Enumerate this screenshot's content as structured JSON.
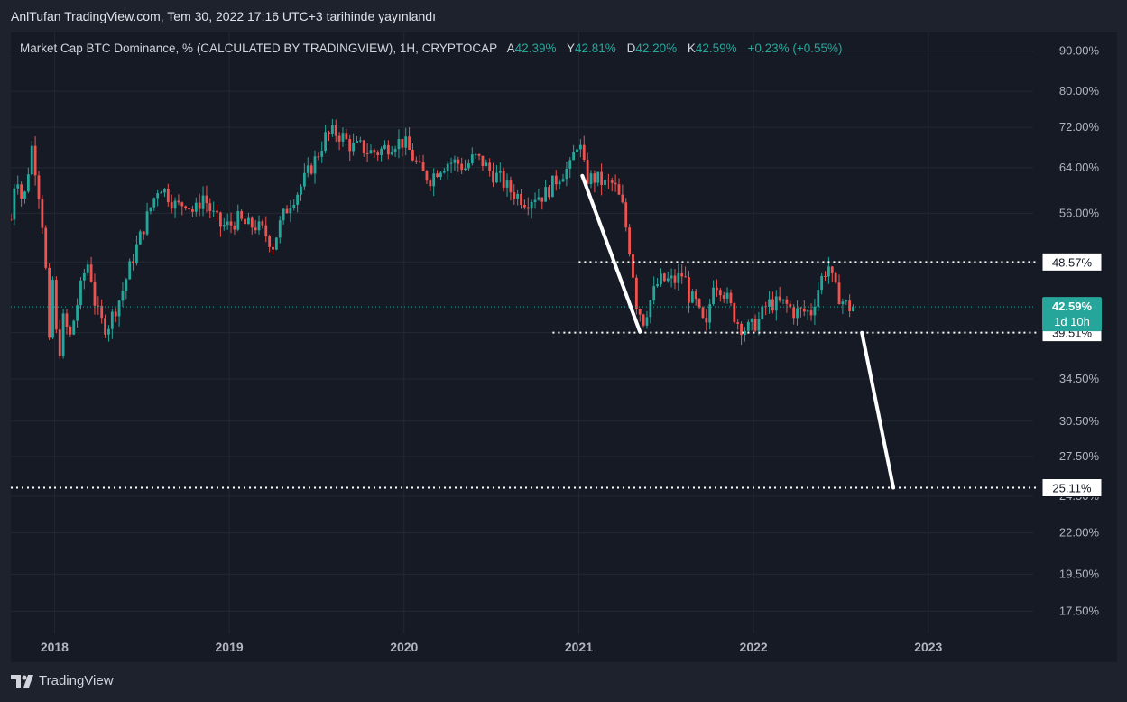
{
  "header": {
    "publish_text": "AnlTufan TradingView.com, Tem 30, 2022 17:16 UTC+3 tarihinde yayınlandı"
  },
  "legend": {
    "title": "Market Cap BTC Dominance, % (CALCULATED BY TRADINGVIEW), 1H, CRYPTOCAP",
    "open_label": "A",
    "open_value": "42.39%",
    "high_label": "Y",
    "high_value": "42.81%",
    "low_label": "D",
    "low_value": "42.20%",
    "close_label": "K",
    "close_value": "42.59%",
    "change": "+0.23% (+0.55%)"
  },
  "footer": {
    "brand": "TradingView"
  },
  "colors": {
    "up": "#26a69a",
    "down": "#ef5350",
    "background": "#161a25",
    "grid": "#242833",
    "text": "#b2b5be"
  },
  "chart_data": {
    "type": "candlestick",
    "y_scale": "log",
    "ylim": [
      16.4,
      95
    ],
    "y_ticks": [
      "90.00%",
      "80.00%",
      "72.00%",
      "64.00%",
      "56.00%",
      "48.57%",
      "39.51%",
      "34.50%",
      "30.50%",
      "27.50%",
      "24.50%",
      "22.00%",
      "19.50%",
      "17.50%"
    ],
    "y_tick_values": [
      90,
      80,
      72,
      64,
      56,
      48.57,
      39.51,
      34.5,
      30.5,
      27.5,
      24.5,
      22,
      19.5,
      17.5
    ],
    "x_ticks": [
      "2018",
      "2019",
      "2020",
      "2021",
      "2022",
      "2023"
    ],
    "x_tick_values": [
      2018.0,
      2019.0,
      2020.0,
      2021.0,
      2022.0,
      2023.0
    ],
    "xlim": [
      2017.75,
      2023.6
    ],
    "current_price": {
      "label": "42.59%",
      "countdown": "1d 10h",
      "value": 42.59
    },
    "horizontal_levels": [
      {
        "label": "48.57%",
        "value": 48.57,
        "x_from": 2021.0
      },
      {
        "label": "39.51%",
        "value": 39.51,
        "x_from": 2020.85
      },
      {
        "label": "25.11%",
        "value": 25.11,
        "x_from": 2017.75
      }
    ],
    "trend_lines": [
      {
        "x1": 2021.02,
        "y1": 62.5,
        "x2": 2021.35,
        "y2": 39.6
      },
      {
        "x1": 2022.62,
        "y1": 39.5,
        "x2": 2022.8,
        "y2": 25.11
      }
    ],
    "price_path": [
      [
        2017.75,
        55
      ],
      [
        2017.78,
        64
      ],
      [
        2017.82,
        57
      ],
      [
        2017.87,
        68
      ],
      [
        2017.9,
        62
      ],
      [
        2017.94,
        52
      ],
      [
        2017.97,
        38
      ],
      [
        2017.99,
        46
      ],
      [
        2018.02,
        36
      ],
      [
        2018.05,
        41
      ],
      [
        2018.09,
        39
      ],
      [
        2018.13,
        43
      ],
      [
        2018.17,
        47
      ],
      [
        2018.2,
        49
      ],
      [
        2018.22,
        44
      ],
      [
        2018.26,
        41
      ],
      [
        2018.3,
        40
      ],
      [
        2018.34,
        42
      ],
      [
        2018.38,
        44
      ],
      [
        2018.42,
        47
      ],
      [
        2018.46,
        50
      ],
      [
        2018.5,
        53
      ],
      [
        2018.55,
        57
      ],
      [
        2018.6,
        61
      ],
      [
        2018.65,
        59
      ],
      [
        2018.7,
        57
      ],
      [
        2018.75,
        58
      ],
      [
        2018.8,
        56
      ],
      [
        2018.85,
        59
      ],
      [
        2018.9,
        56
      ],
      [
        2018.95,
        54
      ],
      [
        2019.0,
        54
      ],
      [
        2019.05,
        55
      ],
      [
        2019.1,
        54
      ],
      [
        2019.15,
        54
      ],
      [
        2019.2,
        53
      ],
      [
        2019.25,
        51
      ],
      [
        2019.3,
        55
      ],
      [
        2019.35,
        58
      ],
      [
        2019.4,
        60
      ],
      [
        2019.45,
        63
      ],
      [
        2019.5,
        66
      ],
      [
        2019.55,
        70
      ],
      [
        2019.6,
        71
      ],
      [
        2019.65,
        70
      ],
      [
        2019.7,
        68
      ],
      [
        2019.75,
        68
      ],
      [
        2019.8,
        67
      ],
      [
        2019.85,
        67
      ],
      [
        2019.9,
        68
      ],
      [
        2019.95,
        69
      ],
      [
        2020.0,
        69
      ],
      [
        2020.05,
        66
      ],
      [
        2020.1,
        63
      ],
      [
        2020.15,
        62
      ],
      [
        2020.2,
        64
      ],
      [
        2020.25,
        65
      ],
      [
        2020.3,
        65
      ],
      [
        2020.35,
        64
      ],
      [
        2020.4,
        66
      ],
      [
        2020.45,
        65
      ],
      [
        2020.5,
        63
      ],
      [
        2020.55,
        62
      ],
      [
        2020.6,
        60
      ],
      [
        2020.65,
        59
      ],
      [
        2020.7,
        58
      ],
      [
        2020.75,
        59
      ],
      [
        2020.8,
        59
      ],
      [
        2020.85,
        61
      ],
      [
        2020.9,
        63
      ],
      [
        2020.95,
        64
      ],
      [
        2021.0,
        70
      ],
      [
        2021.02,
        65
      ],
      [
        2021.05,
        62
      ],
      [
        2021.1,
        62
      ],
      [
        2021.15,
        61
      ],
      [
        2021.2,
        61
      ],
      [
        2021.25,
        57
      ],
      [
        2021.3,
        49
      ],
      [
        2021.33,
        43
      ],
      [
        2021.37,
        41
      ],
      [
        2021.42,
        44
      ],
      [
        2021.46,
        46
      ],
      [
        2021.5,
        46
      ],
      [
        2021.55,
        46
      ],
      [
        2021.6,
        47
      ],
      [
        2021.63,
        44
      ],
      [
        2021.67,
        43
      ],
      [
        2021.7,
        41
      ],
      [
        2021.73,
        40
      ],
      [
        2021.77,
        46
      ],
      [
        2021.82,
        45
      ],
      [
        2021.86,
        43
      ],
      [
        2021.9,
        41
      ],
      [
        2021.94,
        40
      ],
      [
        2021.98,
        40
      ],
      [
        2022.03,
        41
      ],
      [
        2022.08,
        43
      ],
      [
        2022.13,
        43
      ],
      [
        2022.18,
        43
      ],
      [
        2022.23,
        42
      ],
      [
        2022.28,
        42
      ],
      [
        2022.33,
        42
      ],
      [
        2022.37,
        45
      ],
      [
        2022.4,
        47
      ],
      [
        2022.43,
        48
      ],
      [
        2022.46,
        45
      ],
      [
        2022.49,
        44
      ],
      [
        2022.52,
        43
      ],
      [
        2022.55,
        42.5
      ],
      [
        2022.57,
        42.59
      ]
    ]
  }
}
